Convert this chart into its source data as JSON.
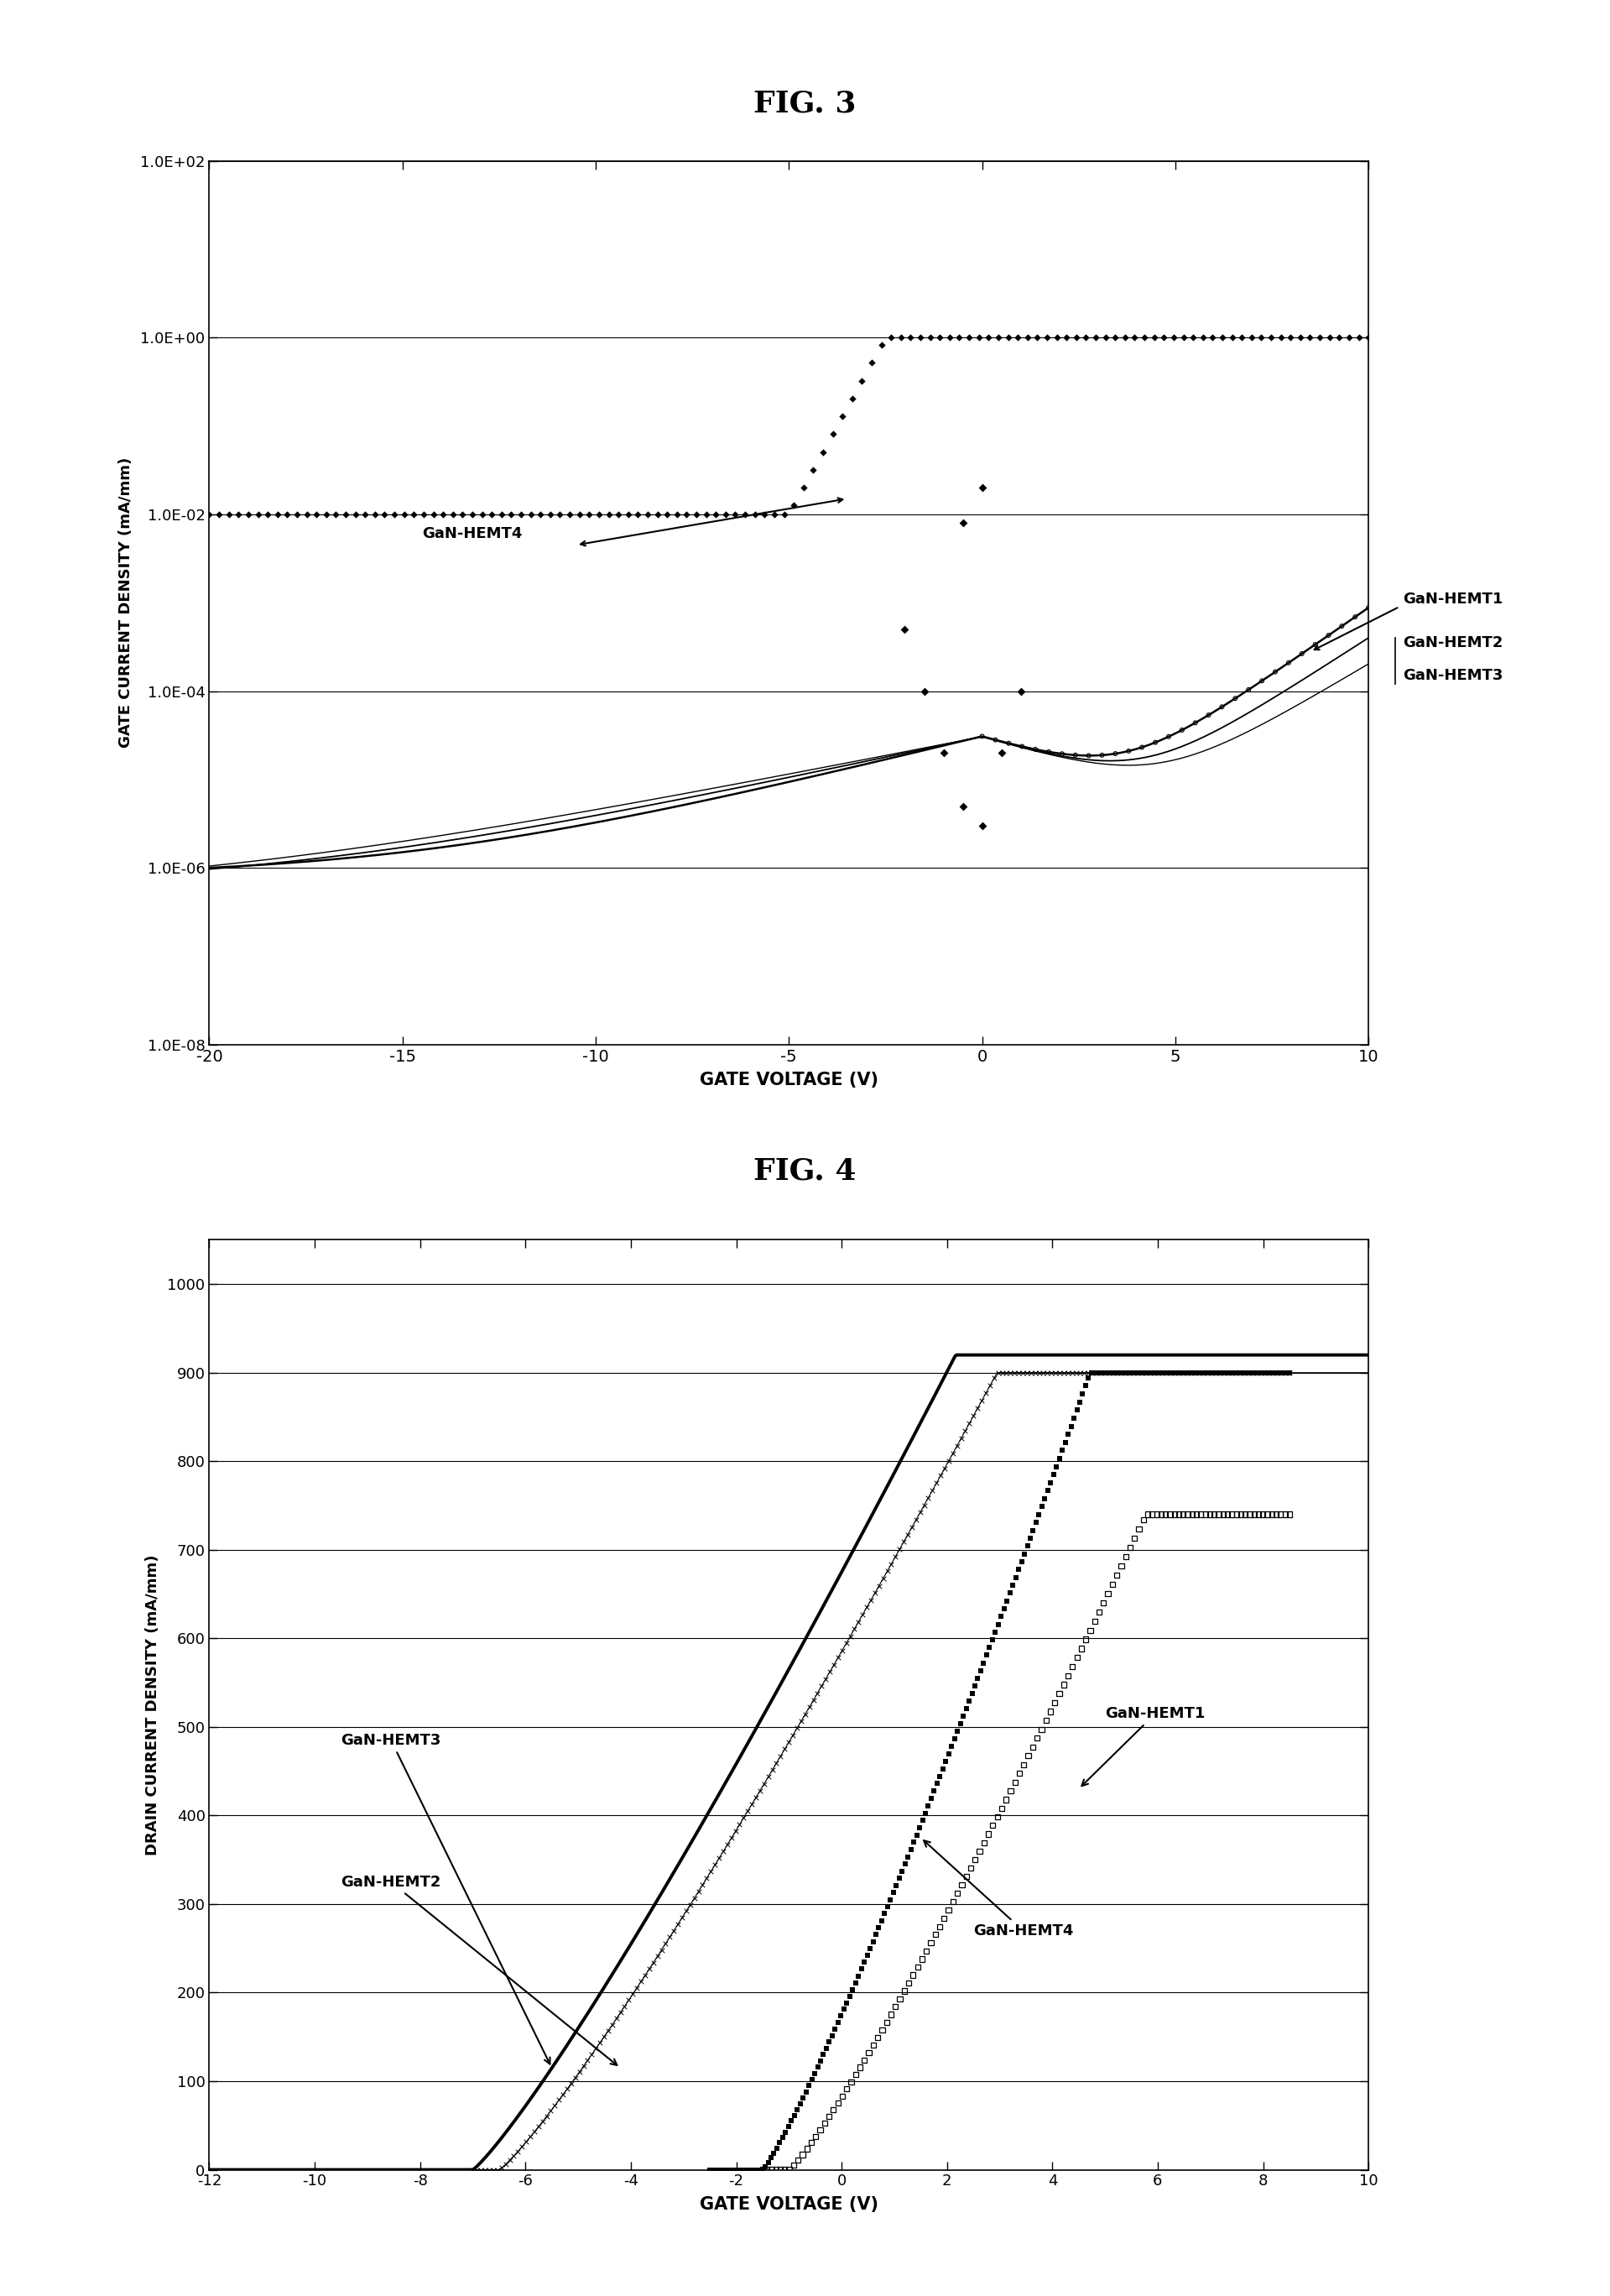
{
  "fig3_title": "FIG. 3",
  "fig4_title": "FIG. 4",
  "fig3_xlabel": "GATE VOLTAGE (V)",
  "fig3_ylabel": "GATE CURRENT DENSITY (mA/mm)",
  "fig4_xlabel": "GATE VOLTAGE (V)",
  "fig4_ylabel": "DRAIN CURRENT DENSITY (mA/mm)",
  "fig3_xlim": [
    -20,
    10
  ],
  "fig4_xlim": [
    -12,
    10
  ],
  "fig4_ylim": [
    0,
    1000
  ],
  "background_color": "#ffffff",
  "ytick_labels_fig3": [
    "1.0E-08",
    "1.0E-06",
    "1.0E-04",
    "1.0E-02",
    "1.0E+00",
    "1.0E+02"
  ],
  "ytick_vals_fig3": [
    1e-08,
    1e-06,
    0.0001,
    0.01,
    1.0,
    100.0
  ],
  "xticks_fig3": [
    -20,
    -15,
    -10,
    -5,
    0,
    5,
    10
  ],
  "xticks_fig4": [
    -12,
    -10,
    -8,
    -6,
    -4,
    -2,
    0,
    2,
    4,
    6,
    8,
    10
  ],
  "yticks_fig4": [
    0,
    100,
    200,
    300,
    400,
    500,
    600,
    700,
    800,
    900,
    1000
  ]
}
